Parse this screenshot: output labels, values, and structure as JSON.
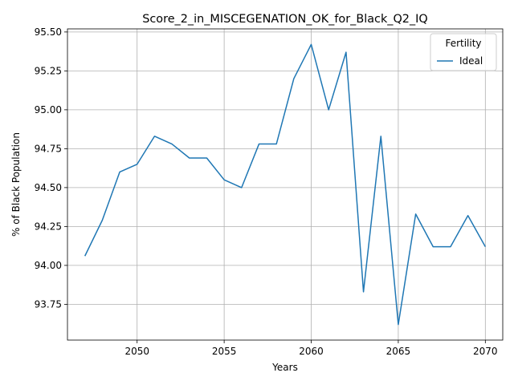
{
  "chart_data": {
    "type": "line",
    "title": "Score_2_in_MISCEGENATION_OK_for_Black_Q2_IQ",
    "xlabel": "Years",
    "ylabel": "% of Black Population",
    "xlim": [
      2046,
      2071
    ],
    "ylim": [
      93.52,
      95.52
    ],
    "x_ticks": [
      2050,
      2055,
      2060,
      2065,
      2070
    ],
    "y_ticks": [
      93.75,
      94.0,
      94.25,
      94.5,
      94.75,
      95.0,
      95.25,
      95.5
    ],
    "y_tick_labels": [
      "93.75",
      "94.00",
      "94.25",
      "94.50",
      "94.75",
      "95.00",
      "95.25",
      "95.50"
    ],
    "grid": true,
    "legend": {
      "title": "Fertility",
      "placement": "top-right"
    },
    "series": [
      {
        "name": "Ideal",
        "color": "#1f77b4",
        "x": [
          2047,
          2048,
          2049,
          2050,
          2051,
          2052,
          2053,
          2054,
          2055,
          2056,
          2057,
          2058,
          2059,
          2060,
          2061,
          2062,
          2063,
          2064,
          2065,
          2066,
          2067,
          2068,
          2069,
          2070
        ],
        "y": [
          94.06,
          94.29,
          94.6,
          94.65,
          94.83,
          94.78,
          94.69,
          94.69,
          94.55,
          94.5,
          94.78,
          94.78,
          95.2,
          95.42,
          95.0,
          95.37,
          93.83,
          94.83,
          93.62,
          94.33,
          94.12,
          94.12,
          94.32,
          94.12
        ]
      }
    ]
  }
}
